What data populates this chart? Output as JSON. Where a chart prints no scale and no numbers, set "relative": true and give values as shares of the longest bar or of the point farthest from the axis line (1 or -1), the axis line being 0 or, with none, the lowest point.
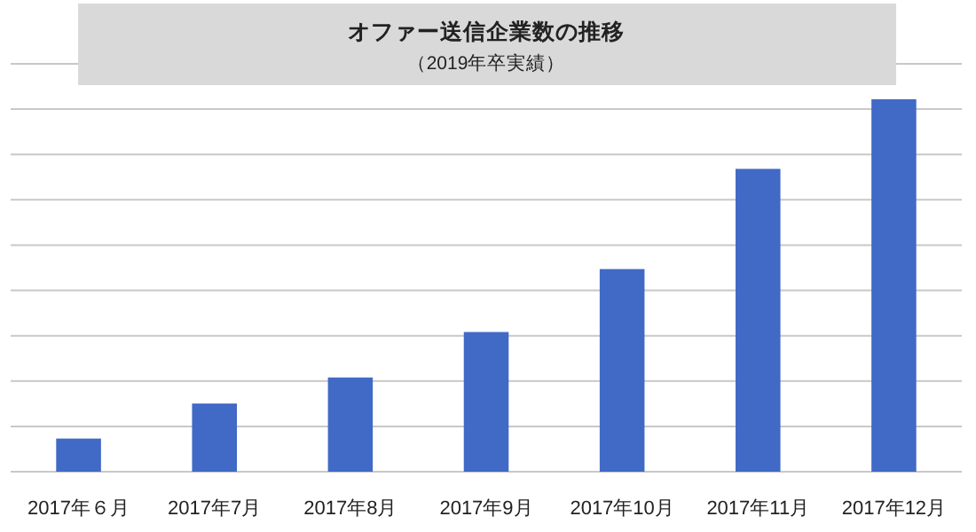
{
  "chart_data": {
    "type": "bar",
    "title": "オファー送信企業数の推移",
    "subtitle": "（2019年卒実績）",
    "categories": [
      "2017年６月",
      "2017年7月",
      "2017年8月",
      "2017年9月",
      "2017年10月",
      "2017年11月",
      "2017年12月"
    ],
    "values": [
      0.089,
      0.183,
      0.253,
      0.375,
      0.544,
      0.813,
      1
    ],
    "color": "#4169c6",
    "relative": true,
    "grid": "y"
  }
}
